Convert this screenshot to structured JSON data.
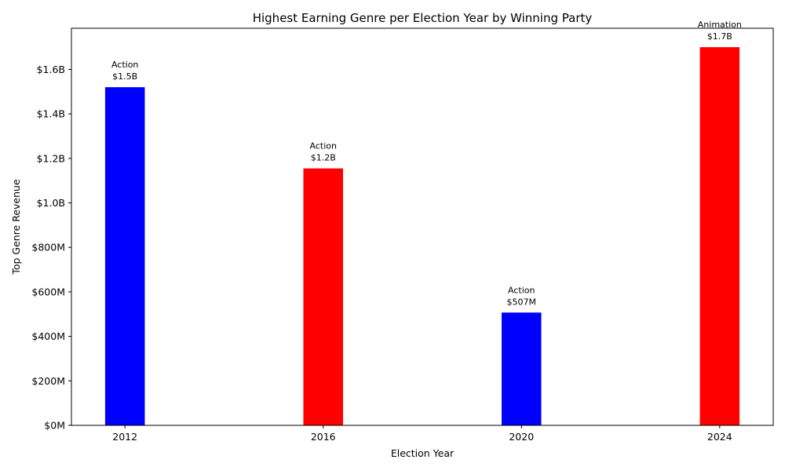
{
  "chart_data": {
    "type": "bar",
    "title": "Highest Earning Genre per Election Year by Winning Party",
    "xlabel": "Election Year",
    "ylabel": "Top Genre Revenue",
    "categories": [
      "2012",
      "2016",
      "2020",
      "2024"
    ],
    "values": [
      1520000000,
      1155000000,
      507000000,
      1700000000
    ],
    "genres": [
      "Action",
      "Action",
      "Action",
      "Animation"
    ],
    "value_labels": [
      "$1.5B",
      "$1.2B",
      "$507M",
      "$1.7B"
    ],
    "bar_colors": [
      "#0000ff",
      "#ff0000",
      "#0000ff",
      "#ff0000"
    ],
    "ylim": [
      0,
      1785000000
    ],
    "yticks": [
      0,
      200000000,
      400000000,
      600000000,
      800000000,
      1000000000,
      1200000000,
      1400000000,
      1600000000
    ],
    "ytick_labels": [
      "$0M",
      "$200M",
      "$400M",
      "$600M",
      "$800M",
      "$1.0B",
      "$1.2B",
      "$1.4B",
      "$1.6B"
    ],
    "grid": false,
    "legend": "none"
  }
}
